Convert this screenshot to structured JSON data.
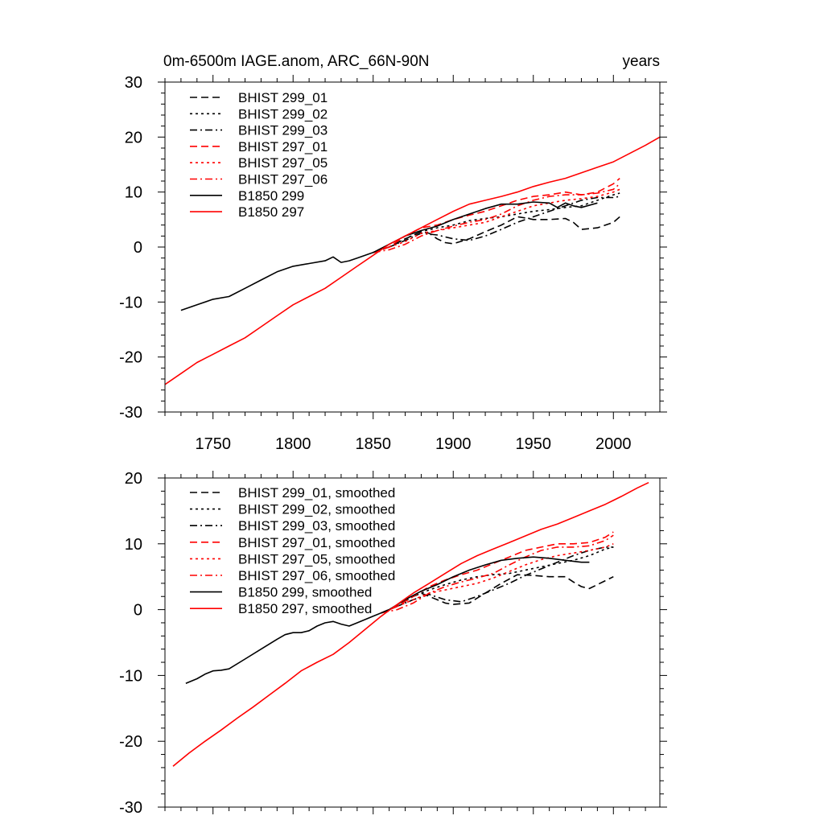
{
  "chart_data": [
    {
      "type": "line",
      "title_left": "0m-6500m IAGE.anom, ARC_66N-90N",
      "title_right": "years",
      "xlim": [
        1720,
        2029
      ],
      "ylim": [
        -30,
        30
      ],
      "xticks": [
        1750,
        1800,
        1850,
        1900,
        1950,
        2000
      ],
      "xtick_labels": [
        "1750",
        "1800",
        "1850",
        "1900",
        "1950",
        "2000"
      ],
      "show_xtick_labels": true,
      "yticks": [
        -30,
        -20,
        -10,
        0,
        10,
        20,
        30
      ],
      "ytick_labels": [
        "-30",
        "-20",
        "-10",
        "0",
        "10",
        "20",
        "30"
      ],
      "series": [
        {
          "name": "BHIST 299_01",
          "color": "#000000",
          "dash": "dash",
          "x": [
            1850,
            1860,
            1870,
            1880,
            1885,
            1890,
            1895,
            1900,
            1910,
            1920,
            1930,
            1940,
            1945,
            1950,
            1960,
            1970,
            1975,
            1980,
            1990,
            2000,
            2004
          ],
          "y": [
            -1,
            0,
            1.5,
            2.8,
            2.5,
            1.5,
            0.8,
            0.6,
            1.5,
            2.8,
            4,
            5.5,
            5.3,
            5,
            5,
            5.2,
            4.5,
            3.2,
            3.5,
            4.5,
            5.5
          ]
        },
        {
          "name": "BHIST 299_02",
          "color": "#000000",
          "dash": "dot",
          "x": [
            1850,
            1860,
            1870,
            1880,
            1890,
            1900,
            1910,
            1920,
            1930,
            1940,
            1950,
            1960,
            1970,
            1980,
            1990,
            2000,
            2004
          ],
          "y": [
            -1,
            0,
            1.5,
            2.8,
            3.5,
            4,
            4.8,
            5.2,
            5.5,
            6,
            6.5,
            6.8,
            7.2,
            7.5,
            8.5,
            9.5,
            9.8
          ]
        },
        {
          "name": "BHIST 299_03",
          "color": "#000000",
          "dash": "dashdot",
          "x": [
            1850,
            1860,
            1870,
            1880,
            1890,
            1900,
            1910,
            1920,
            1930,
            1940,
            1950,
            1960,
            1970,
            1980,
            1990,
            2000,
            2004
          ],
          "y": [
            -1,
            0,
            1.2,
            2.5,
            2.2,
            1.5,
            1.2,
            2,
            3.2,
            4.5,
            5.5,
            6.5,
            7.5,
            8.5,
            9,
            9,
            9.2
          ]
        },
        {
          "name": "BHIST 297_01",
          "color": "#ff0000",
          "dash": "dash",
          "x": [
            1850,
            1860,
            1870,
            1880,
            1890,
            1900,
            1910,
            1920,
            1930,
            1940,
            1950,
            1960,
            1970,
            1980,
            1990,
            2000,
            2004
          ],
          "y": [
            -1,
            0,
            2,
            3.5,
            4,
            5,
            5.8,
            6.5,
            7.5,
            8.5,
            9.2,
            9.5,
            10,
            9.5,
            10,
            11.5,
            12.5
          ]
        },
        {
          "name": "BHIST 297_05",
          "color": "#ff0000",
          "dash": "dot",
          "x": [
            1850,
            1860,
            1870,
            1880,
            1890,
            1900,
            1910,
            1920,
            1930,
            1940,
            1950,
            1960,
            1970,
            1980,
            1990,
            2000,
            2004
          ],
          "y": [
            -1,
            0,
            1,
            2.5,
            3,
            3.5,
            4,
            4.5,
            5.5,
            6.5,
            7.5,
            8,
            8.5,
            8.8,
            9.2,
            10,
            10.5
          ]
        },
        {
          "name": "BHIST 297_06",
          "color": "#ff0000",
          "dash": "dashdot",
          "x": [
            1850,
            1860,
            1870,
            1880,
            1890,
            1900,
            1910,
            1920,
            1930,
            1940,
            1950,
            1960,
            1970,
            1980,
            1990,
            2000,
            2004
          ],
          "y": [
            -1,
            -0.5,
            0.5,
            2,
            3,
            3.8,
            4.5,
            5,
            6,
            7.5,
            8.5,
            9.2,
            9.5,
            9.5,
            9.8,
            10.5,
            11.5
          ]
        },
        {
          "name": "B1850 299",
          "color": "#000000",
          "dash": "solid",
          "x": [
            1730,
            1740,
            1750,
            1760,
            1770,
            1780,
            1790,
            1800,
            1810,
            1820,
            1825,
            1830,
            1835,
            1840,
            1850,
            1860,
            1870,
            1880,
            1890,
            1900,
            1910,
            1920,
            1930,
            1940,
            1950,
            1960,
            1965,
            1970,
            1975,
            1980,
            1990
          ],
          "y": [
            -11.5,
            -10.5,
            -9.5,
            -9,
            -7.5,
            -6,
            -4.5,
            -3.5,
            -3,
            -2.5,
            -1.8,
            -2.8,
            -2.5,
            -2,
            -1,
            0.5,
            2,
            3,
            3.8,
            5,
            6,
            7,
            7.8,
            7.8,
            8.2,
            8,
            7.2,
            8,
            7.5,
            7.2,
            8
          ]
        },
        {
          "name": "B1850 297",
          "color": "#ff0000",
          "dash": "solid",
          "x": [
            1720,
            1730,
            1740,
            1750,
            1760,
            1770,
            1780,
            1790,
            1800,
            1810,
            1820,
            1830,
            1840,
            1850,
            1860,
            1870,
            1880,
            1890,
            1900,
            1910,
            1920,
            1930,
            1940,
            1950,
            1960,
            1970,
            1980,
            1990,
            2000,
            2010,
            2020,
            2029
          ],
          "y": [
            -25,
            -23,
            -21,
            -19.5,
            -18,
            -16.5,
            -14.5,
            -12.5,
            -10.5,
            -9,
            -7.5,
            -5.5,
            -3.5,
            -1.5,
            0.5,
            2,
            3.5,
            5,
            6.5,
            7.8,
            8.5,
            9.2,
            10,
            11,
            11.8,
            12.5,
            13.5,
            14.5,
            15.5,
            17,
            18.5,
            20
          ]
        }
      ]
    },
    {
      "type": "line",
      "title_left": "",
      "title_right": "",
      "xlim": [
        1720,
        2029
      ],
      "ylim": [
        -30,
        20
      ],
      "xticks": [
        1750,
        1800,
        1850,
        1900,
        1950,
        2000
      ],
      "xtick_labels": [],
      "show_xtick_labels": false,
      "yticks": [
        -30,
        -20,
        -10,
        0,
        10,
        20
      ],
      "ytick_labels": [
        "-30",
        "-20",
        "-10",
        "0",
        "10",
        "20"
      ],
      "series": [
        {
          "name": "BHIST 299_01, smoothed",
          "color": "#000000",
          "dash": "dash",
          "x": [
            1855,
            1865,
            1875,
            1880,
            1885,
            1890,
            1895,
            1900,
            1910,
            1920,
            1930,
            1940,
            1950,
            1960,
            1970,
            1975,
            1980,
            1985,
            1990,
            2000
          ],
          "y": [
            -0.5,
            0.5,
            2,
            2.5,
            2,
            1.5,
            1,
            0.8,
            1,
            2.5,
            4,
            5.3,
            5.2,
            5,
            5,
            4.2,
            3.5,
            3.2,
            3.8,
            5
          ]
        },
        {
          "name": "BHIST 299_02, smoothed",
          "color": "#000000",
          "dash": "dot",
          "x": [
            1855,
            1865,
            1875,
            1885,
            1895,
            1905,
            1915,
            1925,
            1935,
            1945,
            1955,
            1965,
            1975,
            1985,
            1995,
            2000
          ],
          "y": [
            -0.5,
            0.5,
            2,
            3,
            3.8,
            4.5,
            5,
            5.3,
            5.5,
            6,
            6.5,
            7,
            7.5,
            8.2,
            9.2,
            9.5
          ]
        },
        {
          "name": "BHIST 299_03, smoothed",
          "color": "#000000",
          "dash": "dashdot",
          "x": [
            1855,
            1865,
            1875,
            1885,
            1895,
            1905,
            1915,
            1925,
            1935,
            1945,
            1955,
            1965,
            1975,
            1985,
            1995,
            2000
          ],
          "y": [
            -0.5,
            0.5,
            1.5,
            2.3,
            1.5,
            1.2,
            2,
            3,
            4,
            5.2,
            6.2,
            7.2,
            8.2,
            9,
            9.5,
            9.5
          ]
        },
        {
          "name": "BHIST 297_01, smoothed",
          "color": "#ff0000",
          "dash": "dash",
          "x": [
            1855,
            1865,
            1875,
            1885,
            1895,
            1905,
            1915,
            1925,
            1935,
            1945,
            1955,
            1965,
            1975,
            1985,
            1995,
            2000
          ],
          "y": [
            -0.5,
            0.5,
            2,
            3.5,
            4.5,
            5.3,
            6,
            7,
            8,
            9,
            9.5,
            10,
            10,
            10.2,
            11,
            11.8
          ]
        },
        {
          "name": "BHIST 297_05, smoothed",
          "color": "#ff0000",
          "dash": "dot",
          "x": [
            1855,
            1865,
            1875,
            1885,
            1895,
            1905,
            1915,
            1925,
            1935,
            1945,
            1955,
            1965,
            1975,
            1985,
            1995,
            2000
          ],
          "y": [
            -0.5,
            0.5,
            1.5,
            2.5,
            3,
            3.5,
            4,
            4.8,
            5.8,
            6.8,
            7.6,
            8.2,
            8.6,
            9,
            9.5,
            10
          ]
        },
        {
          "name": "BHIST 297_06, smoothed",
          "color": "#ff0000",
          "dash": "dashdot",
          "x": [
            1855,
            1865,
            1875,
            1885,
            1895,
            1905,
            1915,
            1925,
            1935,
            1945,
            1955,
            1965,
            1975,
            1985,
            1995,
            2000
          ],
          "y": [
            -0.5,
            0,
            1,
            2.5,
            3.5,
            4.2,
            4.8,
            5.5,
            6.8,
            8,
            9,
            9.5,
            9.5,
            9.7,
            10.5,
            11.3
          ]
        },
        {
          "name": "B1850 299, smoothed",
          "color": "#000000",
          "dash": "solid",
          "x": [
            1733,
            1740,
            1745,
            1750,
            1755,
            1760,
            1770,
            1780,
            1790,
            1795,
            1800,
            1805,
            1810,
            1815,
            1820,
            1825,
            1830,
            1835,
            1840,
            1850,
            1860,
            1870,
            1880,
            1890,
            1900,
            1910,
            1920,
            1930,
            1940,
            1950,
            1960,
            1970,
            1980,
            1985
          ],
          "y": [
            -11.2,
            -10.5,
            -9.8,
            -9.3,
            -9.2,
            -9,
            -7.5,
            -6,
            -4.5,
            -3.8,
            -3.5,
            -3.5,
            -3.2,
            -2.5,
            -2,
            -1.8,
            -2.2,
            -2.5,
            -2,
            -1,
            0,
            1.5,
            2.8,
            3.8,
            5,
            6,
            6.8,
            7.5,
            7.8,
            8,
            7.8,
            7.5,
            7.2,
            7.2
          ]
        },
        {
          "name": "B1850 297, smoothed",
          "color": "#ff0000",
          "dash": "solid",
          "x": [
            1725,
            1735,
            1745,
            1755,
            1765,
            1775,
            1785,
            1795,
            1805,
            1815,
            1825,
            1835,
            1845,
            1855,
            1865,
            1875,
            1885,
            1895,
            1905,
            1915,
            1925,
            1935,
            1945,
            1955,
            1965,
            1975,
            1985,
            1995,
            2005,
            2015,
            2022
          ],
          "y": [
            -23.8,
            -21.8,
            -20,
            -18.3,
            -16.5,
            -14.8,
            -13,
            -11.2,
            -9.3,
            -8,
            -6.8,
            -5,
            -3,
            -1,
            0.8,
            2.5,
            4,
            5.5,
            7,
            8.2,
            9.2,
            10.2,
            11.2,
            12.2,
            13,
            14,
            15,
            16,
            17.2,
            18.5,
            19.3
          ]
        }
      ]
    }
  ]
}
